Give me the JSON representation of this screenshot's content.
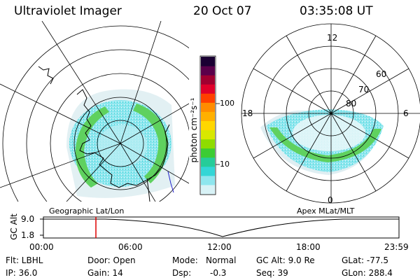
{
  "header": {
    "title": "Ultraviolet Imager",
    "date": "20 Oct 07",
    "time": "03:35:08 UT"
  },
  "left_panel": {
    "label": "Geographic Lat/Lon"
  },
  "right_panel": {
    "label": "Apex MLat/MLT",
    "mlt_labels": {
      "top": "12",
      "left": "18",
      "right": "6",
      "bottom": "0"
    },
    "lat_labels": [
      "60",
      "70",
      "80"
    ]
  },
  "colorbar": {
    "unit_label": "photon cm⁻²s⁻¹",
    "ticks": [
      "100",
      "10"
    ],
    "colors": [
      "#1a0033",
      "#5a004a",
      "#a00030",
      "#e0002a",
      "#ff4000",
      "#ff8c00",
      "#ffb000",
      "#ffd700",
      "#d8e800",
      "#8fdc00",
      "#3ccc33",
      "#26cc99",
      "#33d6d6",
      "#8ee6ee",
      "#d8f2f6"
    ]
  },
  "altitude_plot": {
    "ylabel": "GC Alt",
    "yticks": [
      "9.0",
      "1.8"
    ],
    "xticks": [
      "00:00",
      "06:00",
      "12:00",
      "18:00",
      "23:59"
    ],
    "marker_color": "#dd0000"
  },
  "footer": {
    "filter": "Flt: LBHL",
    "door": "Door: Open",
    "mode_label": "Mode:",
    "mode_value": "Normal",
    "gc_alt": "GC Alt: 9.0 Re",
    "glat": "GLat: -77.5",
    "ip": "IP: 36.0",
    "gain": "Gain: 14",
    "dsp_label": "Dsp:",
    "dsp_value": "-0.3",
    "seq": "Seq: 39",
    "glon": "GLon: 288.4"
  }
}
